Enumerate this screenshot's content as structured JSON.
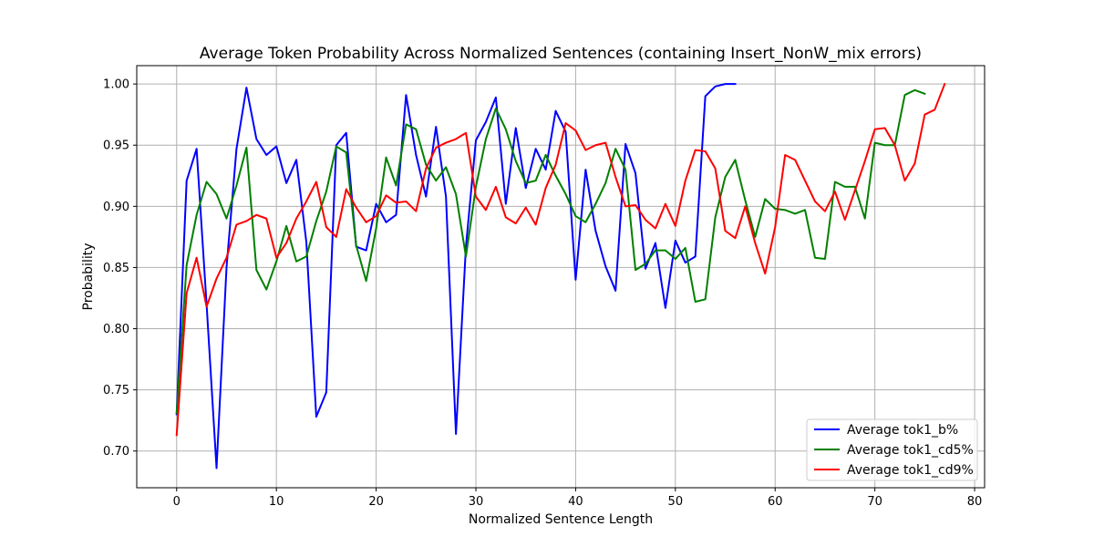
{
  "chart_data": {
    "type": "line",
    "title": "Average Token Probability Across Normalized Sentences (containing Insert_NonW_mix errors)",
    "xlabel": "Normalized Sentence Length",
    "ylabel": "Probability",
    "xlim": [
      -4,
      81
    ],
    "ylim": [
      0.67,
      1.015
    ],
    "xticks": [
      0,
      10,
      20,
      30,
      40,
      50,
      60,
      70,
      80
    ],
    "yticks": [
      0.7,
      0.75,
      0.8,
      0.85,
      0.9,
      0.95,
      1.0
    ],
    "xtick_labels": [
      "0",
      "10",
      "20",
      "30",
      "40",
      "50",
      "60",
      "70",
      "80"
    ],
    "ytick_labels": [
      "0.70",
      "0.75",
      "0.80",
      "0.85",
      "0.90",
      "0.95",
      "1.00"
    ],
    "grid": true,
    "legend_position": "bottom-right",
    "series": [
      {
        "name": "Average tok1_b%",
        "color": "#0000ff",
        "values": [
          0.73,
          0.921,
          0.947,
          0.82,
          0.686,
          0.85,
          0.947,
          0.997,
          0.955,
          0.942,
          0.949,
          0.919,
          0.938,
          0.871,
          0.728,
          0.748,
          0.95,
          0.96,
          0.867,
          0.864,
          0.902,
          0.887,
          0.893,
          0.991,
          0.942,
          0.908,
          0.965,
          0.908,
          0.714,
          0.867,
          0.954,
          0.969,
          0.989,
          0.902,
          0.964,
          0.915,
          0.947,
          0.93,
          0.978,
          0.961,
          0.84,
          0.93,
          0.88,
          0.851,
          0.831,
          0.951,
          0.927,
          0.849,
          0.87,
          0.817,
          0.872,
          0.854,
          0.859,
          0.99,
          0.998,
          1.0,
          1.0
        ]
      },
      {
        "name": "Average tok1_cd5%",
        "color": "#008000",
        "values": [
          0.731,
          0.852,
          0.893,
          0.92,
          0.91,
          0.89,
          0.917,
          0.948,
          0.848,
          0.832,
          0.855,
          0.884,
          0.855,
          0.859,
          0.888,
          0.912,
          0.949,
          0.944,
          0.868,
          0.839,
          0.882,
          0.94,
          0.917,
          0.967,
          0.963,
          0.934,
          0.921,
          0.932,
          0.91,
          0.859,
          0.916,
          0.955,
          0.98,
          0.963,
          0.937,
          0.919,
          0.921,
          0.942,
          0.925,
          0.91,
          0.892,
          0.887,
          0.902,
          0.919,
          0.947,
          0.93,
          0.848,
          0.853,
          0.864,
          0.864,
          0.857,
          0.866,
          0.822,
          0.824,
          0.891,
          0.924,
          0.938,
          0.905,
          0.875,
          0.906,
          0.898,
          0.897,
          0.894,
          0.897,
          0.858,
          0.857,
          0.92,
          0.916,
          0.916,
          0.89,
          0.952,
          0.95,
          0.95,
          0.991,
          0.995,
          0.992
        ]
      },
      {
        "name": "Average tok1_cd9%",
        "color": "#ff0000",
        "values": [
          0.713,
          0.829,
          0.858,
          0.818,
          0.841,
          0.858,
          0.885,
          0.888,
          0.893,
          0.89,
          0.858,
          0.87,
          0.89,
          0.904,
          0.92,
          0.883,
          0.875,
          0.914,
          0.899,
          0.887,
          0.892,
          0.909,
          0.903,
          0.904,
          0.896,
          0.931,
          0.948,
          0.952,
          0.955,
          0.96,
          0.908,
          0.897,
          0.916,
          0.891,
          0.886,
          0.899,
          0.885,
          0.915,
          0.934,
          0.968,
          0.962,
          0.946,
          0.95,
          0.952,
          0.924,
          0.9,
          0.901,
          0.889,
          0.882,
          0.902,
          0.884,
          0.921,
          0.946,
          0.945,
          0.931,
          0.88,
          0.874,
          0.9,
          0.87,
          0.845,
          0.883,
          0.942,
          0.938,
          0.921,
          0.904,
          0.896,
          0.912,
          0.889,
          0.913,
          0.937,
          0.963,
          0.964,
          0.95,
          0.921,
          0.935,
          0.975,
          0.979,
          1.0
        ]
      }
    ]
  }
}
